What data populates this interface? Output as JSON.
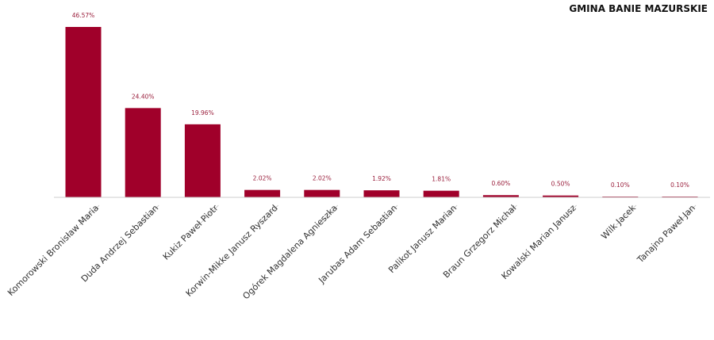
{
  "chart_data": {
    "type": "bar",
    "title": "GMINA BANIE MAZURSKIE",
    "categories": [
      "Komorowski Bronisław Maria",
      "Duda Andrzej Sebastian",
      "Kukiz Paweł Piotr",
      "Korwin-Mikke Janusz Ryszard",
      "Ogórek Magdalena Agnieszka",
      "Jarubas Adam Sebastian",
      "Palikot Janusz Marian",
      "Braun Grzegorz Michał",
      "Kowalski Marian Janusz",
      "Wilk Jacek",
      "Tanajno Paweł Jan"
    ],
    "values": [
      46.57,
      24.4,
      19.96,
      2.02,
      2.02,
      1.92,
      1.81,
      0.6,
      0.5,
      0.1,
      0.1
    ],
    "data_labels": [
      "46.57%",
      "24.40%",
      "19.96%",
      "2.02%",
      "2.02%",
      "1.92%",
      "1.81%",
      "0.60%",
      "0.50%",
      "0.10%",
      "0.10%"
    ],
    "xlabel": "",
    "ylabel": "",
    "ylim": [
      0,
      46.57
    ],
    "grid": false,
    "bar_color": "#a0002a"
  }
}
